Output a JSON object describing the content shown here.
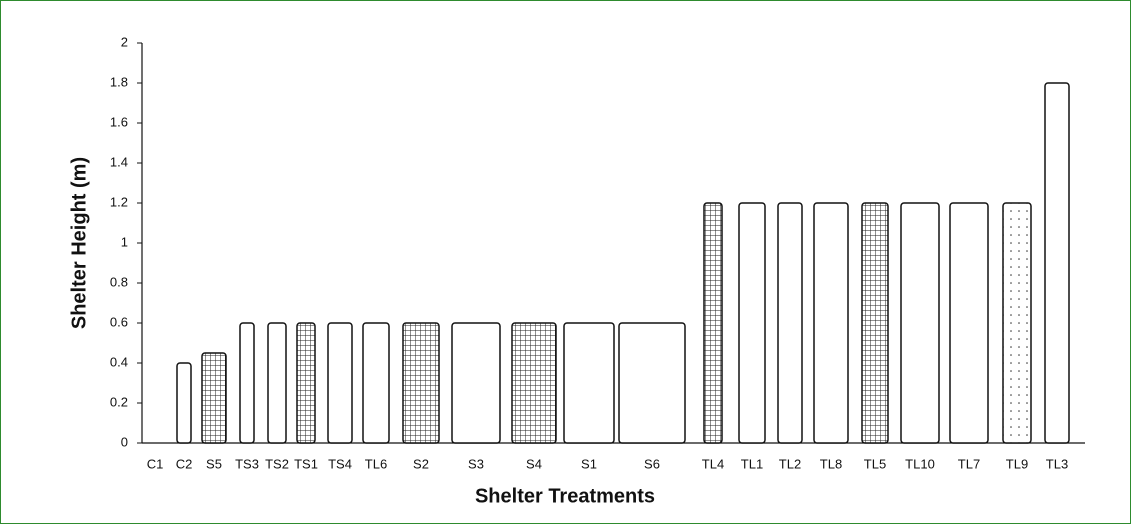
{
  "chart_data": {
    "type": "bar",
    "ylabel": "Shelter Height (m)",
    "xlabel": "Shelter Treatments",
    "categories": [
      "C1",
      "C2",
      "S5",
      "TS3",
      "TS2",
      "TS1",
      "TS4",
      "TL6",
      "S2",
      "S3",
      "S4",
      "S1",
      "S6",
      "TL4",
      "TL1",
      "TL2",
      "TL8",
      "TL5",
      "TL10",
      "TL7",
      "TL9",
      "TL3"
    ],
    "values": [
      0,
      0.4,
      0.45,
      0.6,
      0.6,
      0.6,
      0.6,
      0.6,
      0.6,
      0.6,
      0.6,
      0.6,
      0.6,
      1.2,
      1.2,
      1.2,
      1.2,
      1.2,
      1.2,
      1.2,
      1.2,
      1.8
    ],
    "color": "#ffffff",
    "ylim": [
      0,
      2
    ],
    "yticks": [
      0,
      0.2,
      0.4,
      0.6,
      0.8,
      1,
      1.2,
      1.4,
      1.6,
      1.8,
      2
    ]
  }
}
